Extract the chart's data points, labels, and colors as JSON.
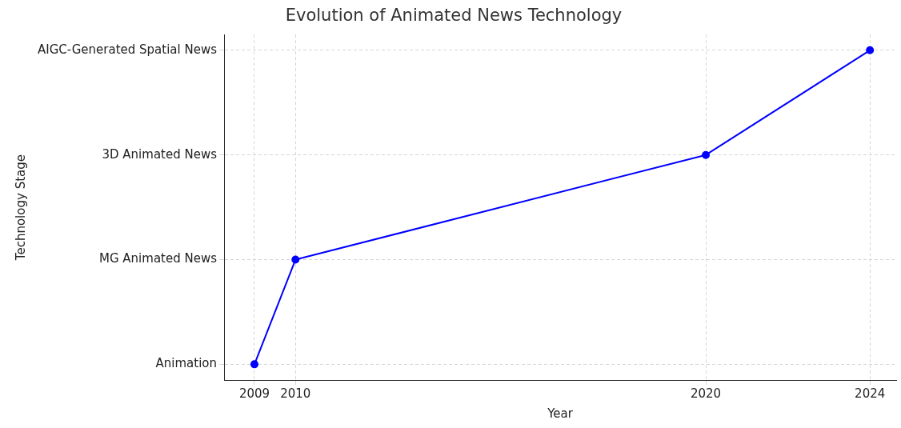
{
  "chart_data": {
    "type": "line",
    "orientation": "horizontal",
    "title": "Evolution of Animated News Technology",
    "xlabel": "Year",
    "ylabel": "Technology Stage",
    "categories": [
      "AIGC-Generated Spatial News",
      "3D Animated News",
      "MG Animated News",
      "Animation"
    ],
    "series": [
      {
        "color": "#0000ff",
        "values": [
          2024,
          2020,
          2010,
          2009
        ]
      }
    ],
    "xlim": [
      2008.26,
      2024.64
    ],
    "xticks": [
      2009,
      2010,
      2020,
      2024
    ],
    "grid": true,
    "marker": "circle",
    "line_style": "solid"
  }
}
